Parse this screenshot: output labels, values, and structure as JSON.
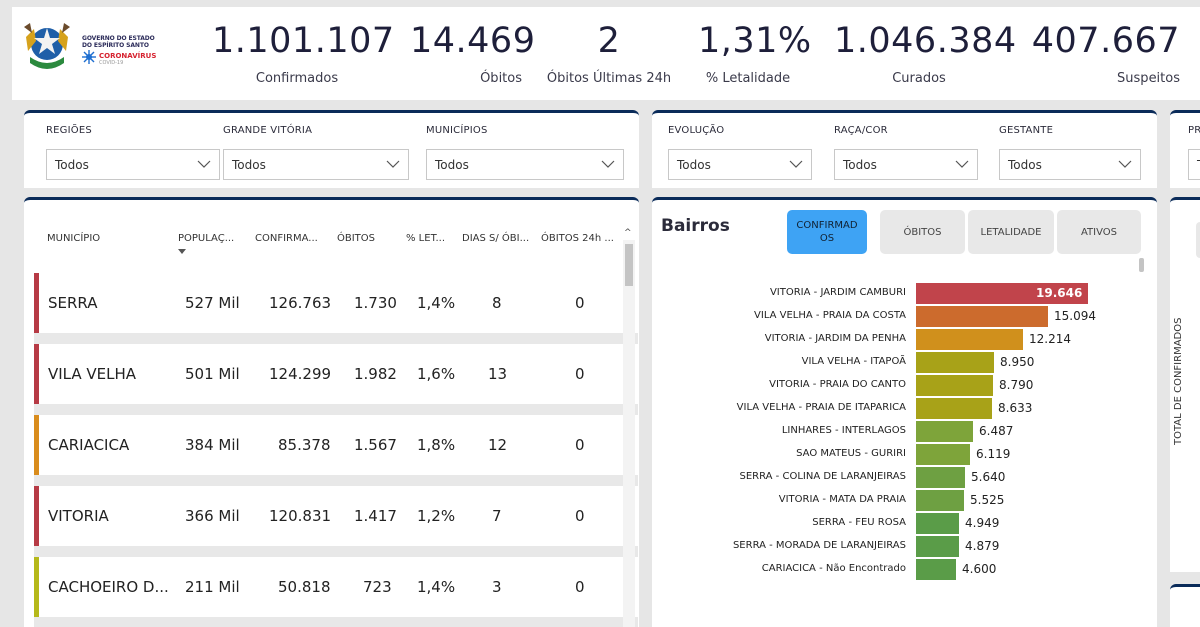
{
  "logo": {
    "gov_line1": "GOVERNO DO ESTADO",
    "gov_line2": "DO ESPÍRITO SANTO",
    "corona": "CORONAVÍRUS",
    "covid": "COVID-19"
  },
  "kpis": [
    {
      "value": "1.101.107",
      "label": "Confirmados"
    },
    {
      "value": "14.469",
      "label": "Óbitos"
    },
    {
      "value": "2",
      "label": "Óbitos Últimas 24h"
    },
    {
      "value": "1,31%",
      "label": "% Letalidade"
    },
    {
      "value": "1.046.384",
      "label": "Curados"
    },
    {
      "value": "407.667",
      "label": "Suspeitos"
    }
  ],
  "filters_left": [
    {
      "label": "REGIÕES",
      "value": "Todos"
    },
    {
      "label": "GRANDE VITÓRIA",
      "value": "Todos"
    },
    {
      "label": "MUNICÍPIOS",
      "value": "Todos"
    }
  ],
  "filters_mid": [
    {
      "label": "EVOLUÇÃO",
      "value": "Todos"
    },
    {
      "label": "RAÇA/COR",
      "value": "Todos"
    },
    {
      "label": "GESTANTE",
      "value": "Todos"
    }
  ],
  "filters_right": {
    "label": "PR",
    "value": "To"
  },
  "table": {
    "columns": [
      "MUNICÍPIO",
      "POPULAÇ...",
      "CONFIRMA...",
      "ÓBITOS",
      "% LET...",
      "DIAS S/ ÓBI...",
      "ÓBITOS 24h ..."
    ],
    "rows": [
      {
        "municipio": "SERRA",
        "populacao": "527 Mil",
        "confirmados": "126.763",
        "obitos": "1.730",
        "letalidade": "1,4%",
        "dias": "8",
        "obitos24": "0",
        "color": "#b63a45"
      },
      {
        "municipio": "VILA VELHA",
        "populacao": "501 Mil",
        "confirmados": "124.299",
        "obitos": "1.982",
        "letalidade": "1,6%",
        "dias": "13",
        "obitos24": "0",
        "color": "#b63a45"
      },
      {
        "municipio": "CARIACICA",
        "populacao": "384 Mil",
        "confirmados": "85.378",
        "obitos": "1.567",
        "letalidade": "1,8%",
        "dias": "12",
        "obitos24": "0",
        "color": "#d98c1c"
      },
      {
        "municipio": "VITORIA",
        "populacao": "366 Mil",
        "confirmados": "120.831",
        "obitos": "1.417",
        "letalidade": "1,2%",
        "dias": "7",
        "obitos24": "0",
        "color": "#b63a45"
      },
      {
        "municipio": "CACHOEIRO D...",
        "populacao": "211 Mil",
        "confirmados": "50.818",
        "obitos": "723",
        "letalidade": "1,4%",
        "dias": "3",
        "obitos24": "0",
        "color": "#b5b81a"
      }
    ]
  },
  "bairros": {
    "title": "Bairros",
    "tabs": [
      "CONFIRMADOS",
      "ÓBITOS",
      "LETALIDADE",
      "ATIVOS"
    ],
    "active_tab": "CONFIRMADOS"
  },
  "chart_data": {
    "type": "bar",
    "orientation": "horizontal",
    "title": "Bairros",
    "categories": [
      "VITORIA - JARDIM CAMBURI",
      "VILA VELHA - PRAIA DA COSTA",
      "VITORIA - JARDIM DA PENHA",
      "VILA VELHA - ITAPOÃ",
      "VITORIA - PRAIA DO CANTO",
      "VILA VELHA - PRAIA DE ITAPARICA",
      "LINHARES - INTERLAGOS",
      "SAO MATEUS - GURIRI",
      "SERRA - COLINA DE LARANJEIRAS",
      "VITORIA - MATA DA PRAIA",
      "SERRA - FEU ROSA",
      "SERRA - MORADA DE LARANJEIRAS",
      "CARIACICA - Não Encontrado"
    ],
    "values": [
      19646,
      15094,
      12214,
      8950,
      8790,
      8633,
      6487,
      6119,
      5640,
      5525,
      4949,
      4879,
      4600
    ],
    "value_labels": [
      "19.646",
      "15.094",
      "12.214",
      "8.950",
      "8.790",
      "8.633",
      "6.487",
      "6.119",
      "5.640",
      "5.525",
      "4.949",
      "4.879",
      "4.600"
    ],
    "colors": [
      "#c1444b",
      "#cc6b2d",
      "#d0901c",
      "#a8a218",
      "#a8a218",
      "#a8a218",
      "#7ea43a",
      "#7ea43a",
      "#6ea042",
      "#6ea042",
      "#5a9c48",
      "#5a9c48",
      "#5a9c48"
    ],
    "xlim": [
      0,
      20000
    ]
  },
  "right_panel": {
    "ylabel": "TOTAL DE CONFIRMADOS"
  }
}
